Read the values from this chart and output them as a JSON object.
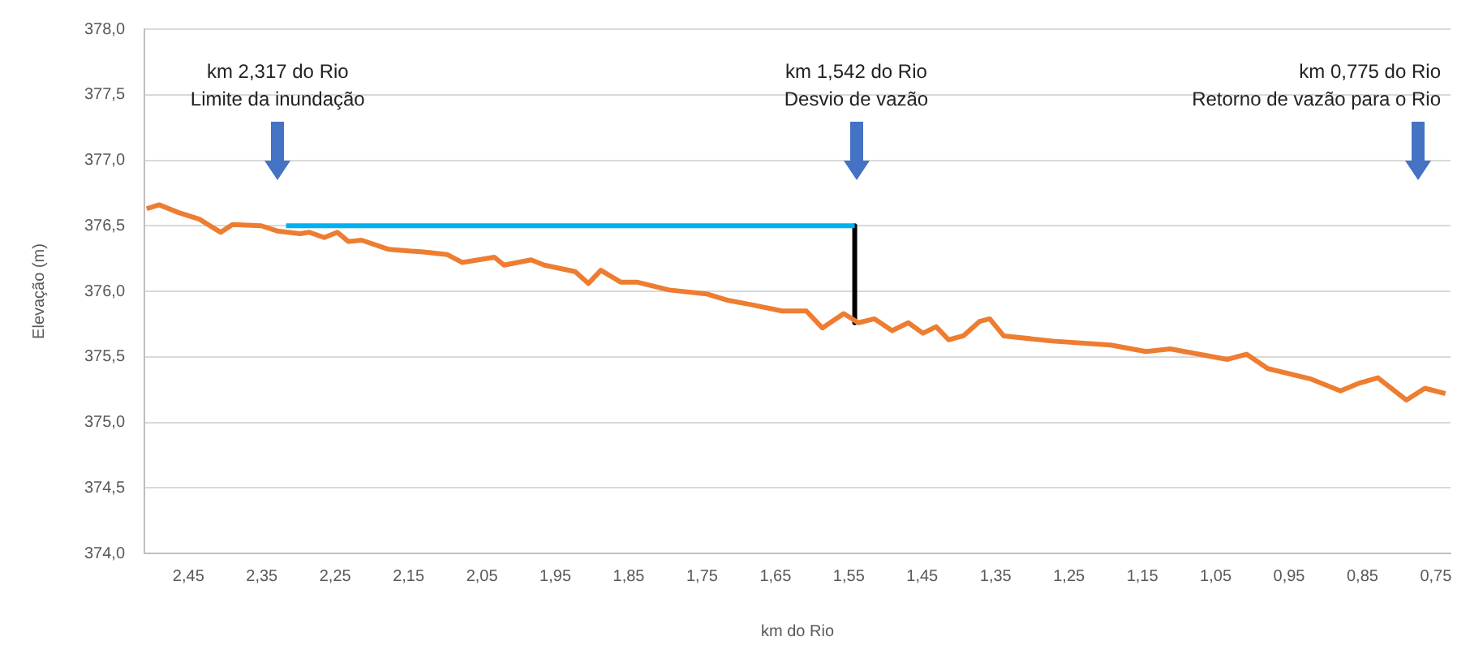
{
  "chart_data": {
    "type": "line",
    "xlabel": "km do Rio",
    "ylabel": "Elevação (m)",
    "xlim": [
      2.51,
      0.73
    ],
    "xticks": [
      {
        "value": 2.45,
        "label": "2,45"
      },
      {
        "value": 2.35,
        "label": "2,35"
      },
      {
        "value": 2.25,
        "label": "2,25"
      },
      {
        "value": 2.15,
        "label": "2,15"
      },
      {
        "value": 2.05,
        "label": "2,05"
      },
      {
        "value": 1.95,
        "label": "1,95"
      },
      {
        "value": 1.85,
        "label": "1,85"
      },
      {
        "value": 1.75,
        "label": "1,75"
      },
      {
        "value": 1.65,
        "label": "1,65"
      },
      {
        "value": 1.55,
        "label": "1,55"
      },
      {
        "value": 1.45,
        "label": "1,45"
      },
      {
        "value": 1.35,
        "label": "1,35"
      },
      {
        "value": 1.25,
        "label": "1,25"
      },
      {
        "value": 1.15,
        "label": "1,15"
      },
      {
        "value": 1.05,
        "label": "1,05"
      },
      {
        "value": 0.95,
        "label": "0,95"
      },
      {
        "value": 0.85,
        "label": "0,85"
      },
      {
        "value": 0.75,
        "label": "0,75"
      }
    ],
    "ylim": [
      374,
      378
    ],
    "yticks": [
      {
        "value": 374,
        "label": "374,0"
      },
      {
        "value": 374.5,
        "label": "374,5"
      },
      {
        "value": 375,
        "label": "375,0"
      },
      {
        "value": 375.5,
        "label": "375,5"
      },
      {
        "value": 376,
        "label": "376,0"
      },
      {
        "value": 376.5,
        "label": "376,5"
      },
      {
        "value": 377,
        "label": "377,0"
      },
      {
        "value": 377.5,
        "label": "377,5"
      },
      {
        "value": 378,
        "label": "378,0"
      }
    ],
    "grid": "y",
    "marker": "none",
    "line_style": "solid",
    "series": [
      {
        "type": "line",
        "color": "#ed7d31",
        "x": [
          2.507,
          2.49,
          2.463,
          2.435,
          2.406,
          2.39,
          2.351,
          2.329,
          2.298,
          2.285,
          2.265,
          2.247,
          2.232,
          2.214,
          2.177,
          2.13,
          2.097,
          2.077,
          2.033,
          2.02,
          1.983,
          1.965,
          1.923,
          1.905,
          1.888,
          1.861,
          1.839,
          1.795,
          1.744,
          1.714,
          1.685,
          1.641,
          1.608,
          1.586,
          1.557,
          1.537,
          1.515,
          1.491,
          1.469,
          1.449,
          1.431,
          1.414,
          1.394,
          1.372,
          1.358,
          1.339,
          1.272,
          1.193,
          1.145,
          1.112,
          1.034,
          1.008,
          0.979,
          0.92,
          0.88,
          0.854,
          0.829,
          0.79,
          0.765,
          0.737
        ],
        "values": [
          376.63,
          376.66,
          376.6,
          376.55,
          376.45,
          376.51,
          376.5,
          376.46,
          376.44,
          376.45,
          376.41,
          376.45,
          376.38,
          376.39,
          376.32,
          376.3,
          376.28,
          376.22,
          376.26,
          376.2,
          376.24,
          376.2,
          376.15,
          376.06,
          376.16,
          376.07,
          376.07,
          376.01,
          375.98,
          375.93,
          375.9,
          375.85,
          375.85,
          375.72,
          375.83,
          375.76,
          375.79,
          375.7,
          375.76,
          375.68,
          375.73,
          375.63,
          375.66,
          375.77,
          375.79,
          375.66,
          375.62,
          375.59,
          375.54,
          375.56,
          375.48,
          375.52,
          375.41,
          375.33,
          375.24,
          375.3,
          375.34,
          375.17,
          375.26,
          375.22
        ]
      },
      {
        "type": "line",
        "color": "#00b0f0",
        "x": [
          2.317,
          1.542
        ],
        "values": [
          376.5,
          376.5
        ]
      },
      {
        "type": "line",
        "color": "#000000",
        "x": [
          1.542,
          1.542
        ],
        "values": [
          376.5,
          375.76
        ]
      }
    ],
    "annotations": [
      "km 2,317 do Rio\nLimite da inundação",
      "km 1,542 do Rio\nDesvio de vazão",
      "km 0,775 do Rio\nRetorno de vazão para o Rio"
    ]
  }
}
